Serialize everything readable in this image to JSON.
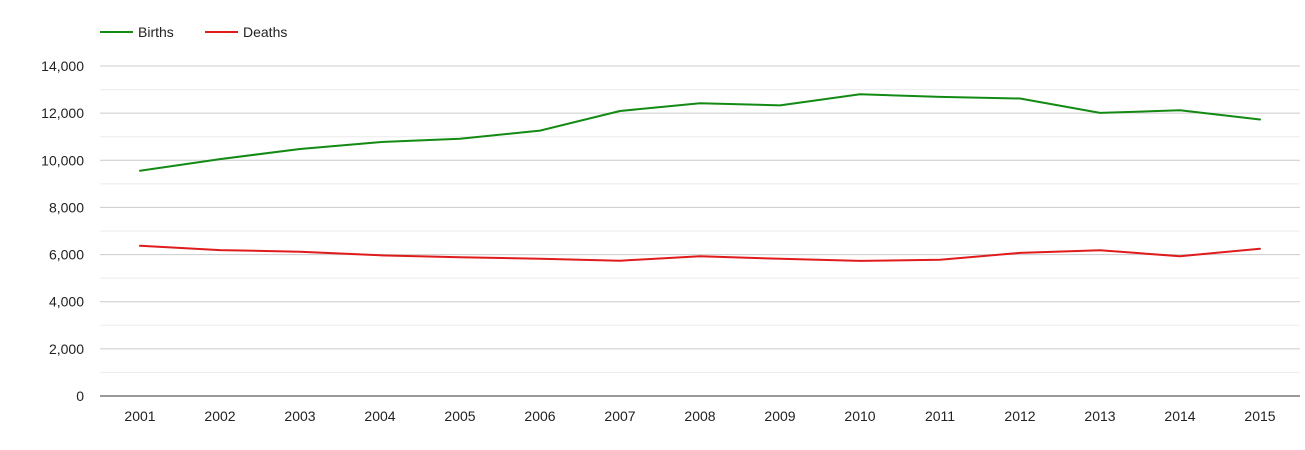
{
  "chart_data": {
    "type": "line",
    "title": "",
    "xlabel": "",
    "ylabel": "",
    "categories": [
      "2001",
      "2002",
      "2003",
      "2004",
      "2005",
      "2006",
      "2007",
      "2008",
      "2009",
      "2010",
      "2011",
      "2012",
      "2013",
      "2014",
      "2015"
    ],
    "ylim": [
      0,
      14000
    ],
    "yticks": [
      0,
      2000,
      4000,
      6000,
      8000,
      10000,
      12000,
      14000
    ],
    "ytick_labels": [
      "0",
      "2,000",
      "4,000",
      "6,000",
      "8,000",
      "10,000",
      "12,000",
      "14,000"
    ],
    "grid": true,
    "minor_grid": true,
    "legend_position": "top-left",
    "series": [
      {
        "name": "Births",
        "color": "#138a13",
        "values": [
          9560,
          10050,
          10480,
          10770,
          10910,
          11260,
          12090,
          12420,
          12330,
          12800,
          12690,
          12620,
          12010,
          12120,
          11730
        ]
      },
      {
        "name": "Deaths",
        "color": "#e01b1b",
        "values": [
          6370,
          6190,
          6120,
          5970,
          5890,
          5820,
          5740,
          5930,
          5820,
          5730,
          5780,
          6070,
          6180,
          5930,
          6250
        ]
      }
    ]
  }
}
